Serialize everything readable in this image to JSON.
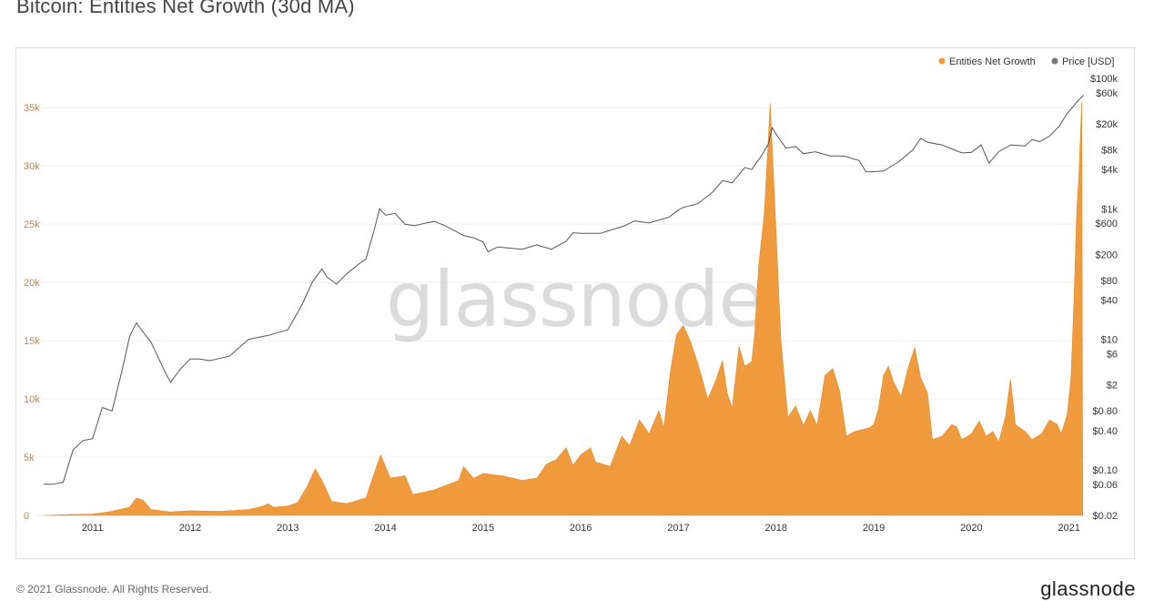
{
  "title": "Bitcoin: Entities Net Growth (30d MA)",
  "footer": {
    "copyright": "© 2021 Glassnode. All Rights Reserved.",
    "brand": "glassnode"
  },
  "watermark": "glassnode",
  "colors": {
    "growth": "#f09a3e",
    "price": "#555555",
    "grid": "#efefef",
    "left_axis": "#c9853a"
  },
  "chart_data": {
    "type": "area",
    "title": "Bitcoin: Entities Net Growth (30d MA)",
    "legend_position": "top-right",
    "legend": [
      {
        "name": "Entities Net Growth",
        "color": "#f09a3e"
      },
      {
        "name": "Price [USD]",
        "color": "#777777"
      }
    ],
    "x_ticks": [
      "2011",
      "2012",
      "2013",
      "2014",
      "2015",
      "2016",
      "2017",
      "2018",
      "2019",
      "2020",
      "2021"
    ],
    "x_range": [
      2010.5,
      2021.18
    ],
    "y_left": {
      "ticks": [
        "0",
        "5k",
        "10k",
        "15k",
        "20k",
        "25k",
        "30k",
        "35k"
      ],
      "ylim": [
        0,
        36500
      ]
    },
    "y_right": {
      "scale": "log",
      "ticks": [
        "$100k",
        "$60k",
        "$20k",
        "$8k",
        "$4k",
        "$1k",
        "$600",
        "$200",
        "$80",
        "$40",
        "$10",
        "$6",
        "$2",
        "$0.80",
        "$0.40",
        "$0.10",
        "$0.06",
        "$0.02"
      ],
      "ylim": [
        0.02,
        100000
      ]
    },
    "series": [
      {
        "name": "Entities Net Growth",
        "axis": "left",
        "points": [
          [
            2010.5,
            0
          ],
          [
            2010.75,
            80
          ],
          [
            2011.0,
            120
          ],
          [
            2011.2,
            350
          ],
          [
            2011.38,
            700
          ],
          [
            2011.45,
            1500
          ],
          [
            2011.52,
            1300
          ],
          [
            2011.6,
            500
          ],
          [
            2011.8,
            300
          ],
          [
            2012.0,
            400
          ],
          [
            2012.3,
            350
          ],
          [
            2012.6,
            500
          ],
          [
            2012.75,
            800
          ],
          [
            2012.8,
            1000
          ],
          [
            2012.85,
            700
          ],
          [
            2013.0,
            800
          ],
          [
            2013.1,
            1100
          ],
          [
            2013.2,
            2500
          ],
          [
            2013.28,
            4000
          ],
          [
            2013.35,
            3000
          ],
          [
            2013.45,
            1200
          ],
          [
            2013.6,
            1000
          ],
          [
            2013.8,
            1500
          ],
          [
            2013.88,
            3500
          ],
          [
            2013.95,
            5200
          ],
          [
            2014.05,
            3200
          ],
          [
            2014.2,
            3400
          ],
          [
            2014.28,
            1800
          ],
          [
            2014.5,
            2200
          ],
          [
            2014.75,
            3000
          ],
          [
            2014.8,
            4200
          ],
          [
            2014.9,
            3200
          ],
          [
            2015.0,
            3600
          ],
          [
            2015.2,
            3400
          ],
          [
            2015.4,
            3000
          ],
          [
            2015.55,
            3200
          ],
          [
            2015.65,
            4400
          ],
          [
            2015.75,
            4800
          ],
          [
            2015.85,
            5800
          ],
          [
            2015.92,
            4300
          ],
          [
            2016.0,
            5200
          ],
          [
            2016.1,
            5800
          ],
          [
            2016.15,
            4600
          ],
          [
            2016.3,
            4200
          ],
          [
            2016.42,
            6800
          ],
          [
            2016.5,
            6000
          ],
          [
            2016.6,
            8200
          ],
          [
            2016.7,
            7000
          ],
          [
            2016.75,
            8000
          ],
          [
            2016.8,
            9000
          ],
          [
            2016.85,
            7500
          ],
          [
            2016.92,
            12500
          ],
          [
            2016.98,
            15500
          ],
          [
            2017.05,
            16300
          ],
          [
            2017.12,
            15000
          ],
          [
            2017.2,
            13000
          ],
          [
            2017.3,
            10000
          ],
          [
            2017.38,
            11500
          ],
          [
            2017.45,
            13300
          ],
          [
            2017.5,
            10500
          ],
          [
            2017.55,
            9200
          ],
          [
            2017.62,
            14500
          ],
          [
            2017.68,
            12800
          ],
          [
            2017.75,
            13200
          ],
          [
            2017.78,
            15500
          ],
          [
            2017.82,
            21300
          ],
          [
            2017.88,
            26000
          ],
          [
            2017.94,
            35400
          ],
          [
            2017.98,
            28000
          ],
          [
            2018.05,
            15000
          ],
          [
            2018.12,
            8400
          ],
          [
            2018.2,
            9400
          ],
          [
            2018.28,
            7700
          ],
          [
            2018.35,
            9000
          ],
          [
            2018.42,
            7700
          ],
          [
            2018.5,
            12000
          ],
          [
            2018.58,
            12600
          ],
          [
            2018.65,
            10700
          ],
          [
            2018.72,
            6800
          ],
          [
            2018.8,
            7200
          ],
          [
            2018.95,
            7500
          ],
          [
            2019.0,
            7800
          ],
          [
            2019.05,
            9200
          ],
          [
            2019.1,
            12000
          ],
          [
            2019.15,
            12800
          ],
          [
            2019.2,
            11500
          ],
          [
            2019.28,
            10200
          ],
          [
            2019.35,
            12600
          ],
          [
            2019.42,
            14400
          ],
          [
            2019.48,
            11800
          ],
          [
            2019.55,
            10500
          ],
          [
            2019.6,
            6500
          ],
          [
            2019.7,
            6800
          ],
          [
            2019.8,
            7800
          ],
          [
            2019.85,
            7600
          ],
          [
            2019.9,
            6500
          ],
          [
            2020.0,
            7000
          ],
          [
            2020.08,
            8100
          ],
          [
            2020.15,
            6800
          ],
          [
            2020.22,
            7200
          ],
          [
            2020.28,
            6300
          ],
          [
            2020.35,
            8500
          ],
          [
            2020.4,
            11700
          ],
          [
            2020.45,
            7800
          ],
          [
            2020.55,
            7200
          ],
          [
            2020.62,
            6500
          ],
          [
            2020.72,
            7000
          ],
          [
            2020.8,
            8200
          ],
          [
            2020.88,
            7800
          ],
          [
            2020.92,
            7000
          ],
          [
            2020.98,
            8600
          ],
          [
            2021.02,
            11800
          ],
          [
            2021.05,
            18500
          ],
          [
            2021.08,
            26500
          ],
          [
            2021.1,
            29000
          ],
          [
            2021.13,
            35500
          ],
          [
            2021.14,
            0
          ]
        ]
      },
      {
        "name": "Price [USD]",
        "axis": "right",
        "points": [
          [
            2010.5,
            0.06
          ],
          [
            2010.6,
            0.06
          ],
          [
            2010.7,
            0.065
          ],
          [
            2010.8,
            0.2
          ],
          [
            2010.9,
            0.28
          ],
          [
            2011.0,
            0.3
          ],
          [
            2011.1,
            0.9
          ],
          [
            2011.2,
            0.8
          ],
          [
            2011.3,
            3.2
          ],
          [
            2011.38,
            11
          ],
          [
            2011.45,
            18
          ],
          [
            2011.5,
            14
          ],
          [
            2011.6,
            9
          ],
          [
            2011.75,
            3
          ],
          [
            2011.8,
            2.2
          ],
          [
            2011.9,
            3.5
          ],
          [
            2012.0,
            5
          ],
          [
            2012.1,
            5
          ],
          [
            2012.2,
            4.7
          ],
          [
            2012.4,
            5.5
          ],
          [
            2012.6,
            10
          ],
          [
            2012.8,
            11.5
          ],
          [
            2013.0,
            14
          ],
          [
            2013.15,
            35
          ],
          [
            2013.25,
            75
          ],
          [
            2013.35,
            120
          ],
          [
            2013.4,
            90
          ],
          [
            2013.5,
            70
          ],
          [
            2013.6,
            100
          ],
          [
            2013.72,
            140
          ],
          [
            2013.8,
            170
          ],
          [
            2013.88,
            450
          ],
          [
            2013.94,
            1000
          ],
          [
            2014.0,
            800
          ],
          [
            2014.1,
            850
          ],
          [
            2014.2,
            580
          ],
          [
            2014.3,
            550
          ],
          [
            2014.4,
            600
          ],
          [
            2014.5,
            640
          ],
          [
            2014.6,
            560
          ],
          [
            2014.8,
            390
          ],
          [
            2014.9,
            360
          ],
          [
            2015.0,
            310
          ],
          [
            2015.05,
            220
          ],
          [
            2015.15,
            260
          ],
          [
            2015.4,
            240
          ],
          [
            2015.55,
            280
          ],
          [
            2015.7,
            240
          ],
          [
            2015.85,
            320
          ],
          [
            2015.92,
            430
          ],
          [
            2016.0,
            420
          ],
          [
            2016.2,
            420
          ],
          [
            2016.45,
            550
          ],
          [
            2016.55,
            650
          ],
          [
            2016.7,
            610
          ],
          [
            2016.9,
            740
          ],
          [
            2017.0,
            960
          ],
          [
            2017.05,
            1050
          ],
          [
            2017.2,
            1200
          ],
          [
            2017.35,
            1800
          ],
          [
            2017.45,
            2700
          ],
          [
            2017.55,
            2500
          ],
          [
            2017.68,
            4300
          ],
          [
            2017.75,
            4000
          ],
          [
            2017.85,
            6500
          ],
          [
            2017.92,
            9800
          ],
          [
            2017.96,
            17500
          ],
          [
            2018.0,
            14000
          ],
          [
            2018.1,
            8500
          ],
          [
            2018.2,
            9000
          ],
          [
            2018.28,
            7000
          ],
          [
            2018.4,
            7500
          ],
          [
            2018.55,
            6500
          ],
          [
            2018.7,
            6400
          ],
          [
            2018.85,
            5500
          ],
          [
            2018.92,
            3700
          ],
          [
            2019.0,
            3700
          ],
          [
            2019.1,
            3800
          ],
          [
            2019.25,
            5200
          ],
          [
            2019.4,
            8000
          ],
          [
            2019.48,
            12000
          ],
          [
            2019.55,
            10500
          ],
          [
            2019.7,
            9500
          ],
          [
            2019.8,
            8300
          ],
          [
            2019.9,
            7200
          ],
          [
            2020.0,
            7300
          ],
          [
            2020.1,
            9500
          ],
          [
            2020.18,
            5000
          ],
          [
            2020.28,
            7500
          ],
          [
            2020.4,
            9500
          ],
          [
            2020.55,
            9200
          ],
          [
            2020.62,
            11500
          ],
          [
            2020.7,
            10700
          ],
          [
            2020.8,
            13000
          ],
          [
            2020.9,
            18500
          ],
          [
            2020.98,
            29000
          ],
          [
            2021.05,
            38000
          ],
          [
            2021.1,
            47000
          ],
          [
            2021.15,
            55000
          ]
        ]
      }
    ]
  }
}
